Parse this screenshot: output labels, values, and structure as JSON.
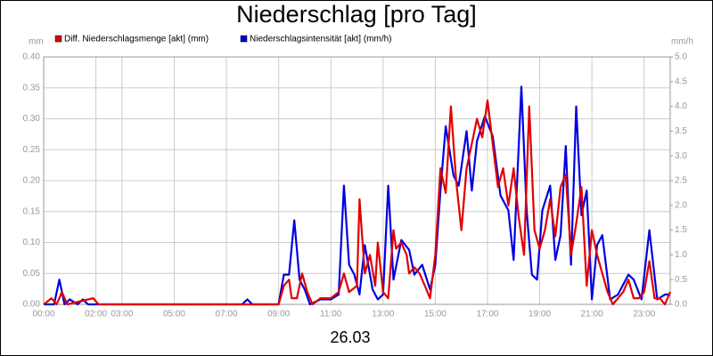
{
  "chart_data": {
    "type": "line",
    "title": "Niederschlag [pro Tag]",
    "x_label": "26.03",
    "y_label": "mm",
    "y2_label": "mm/h",
    "grid": true,
    "xlim": [
      0,
      24
    ],
    "xticks": [
      {
        "value": 0,
        "label": "00:00"
      },
      {
        "value": 2,
        "label": "02:00"
      },
      {
        "value": 3,
        "label": "03:00"
      },
      {
        "value": 5,
        "label": "05:00"
      },
      {
        "value": 7,
        "label": "07:00"
      },
      {
        "value": 9,
        "label": "09:00"
      },
      {
        "value": 11,
        "label": "11:00"
      },
      {
        "value": 13,
        "label": "13:00"
      },
      {
        "value": 15,
        "label": "15:00"
      },
      {
        "value": 17,
        "label": "17:00"
      },
      {
        "value": 19,
        "label": "19:00"
      },
      {
        "value": 21,
        "label": "21:00"
      },
      {
        "value": 23,
        "label": "23:00"
      }
    ],
    "ylim": [
      0,
      0.4
    ],
    "yticks": [
      {
        "value": 0,
        "label": "0.00"
      },
      {
        "value": 0.05,
        "label": "0.05"
      },
      {
        "value": 0.1,
        "label": "0.10"
      },
      {
        "value": 0.15,
        "label": "0.15"
      },
      {
        "value": 0.2,
        "label": "0.20"
      },
      {
        "value": 0.25,
        "label": "0.25"
      },
      {
        "value": 0.3,
        "label": "0.30"
      },
      {
        "value": 0.35,
        "label": "0.35"
      },
      {
        "value": 0.4,
        "label": "0.40"
      }
    ],
    "y2lim": [
      0,
      5
    ],
    "y2ticks": [
      {
        "value": 0,
        "label": "0.0"
      },
      {
        "value": 0.5,
        "label": "0.5"
      },
      {
        "value": 1,
        "label": "1.0"
      },
      {
        "value": 1.5,
        "label": "1.5"
      },
      {
        "value": 2,
        "label": "2.0"
      },
      {
        "value": 2.5,
        "label": "2.5"
      },
      {
        "value": 3,
        "label": "3.0"
      },
      {
        "value": 3.5,
        "label": "3.5"
      },
      {
        "value": 4,
        "label": "4.0"
      },
      {
        "value": 4.5,
        "label": "4.5"
      },
      {
        "value": 5,
        "label": "5.0"
      }
    ],
    "series": [
      {
        "name": "Niederschlagsintensität [akt] (mm/h)",
        "color": "#0000e0",
        "axis": "y2",
        "x": [
          0,
          0.4,
          0.6,
          0.8,
          1.0,
          1.3,
          1.5,
          1.7,
          2.0,
          7.6,
          7.8,
          8.0,
          9.0,
          9.2,
          9.4,
          9.6,
          9.8,
          10.0,
          10.2,
          10.6,
          11.0,
          11.3,
          11.5,
          11.7,
          11.9,
          12.1,
          12.3,
          12.6,
          12.8,
          13.0,
          13.2,
          13.4,
          13.7,
          14.0,
          14.2,
          14.5,
          14.8,
          15.0,
          15.2,
          15.4,
          15.7,
          15.9,
          16.2,
          16.4,
          16.6,
          16.9,
          17.2,
          17.5,
          17.8,
          18.0,
          18.3,
          18.5,
          18.7,
          18.9,
          19.1,
          19.4,
          19.6,
          19.8,
          20.0,
          20.2,
          20.4,
          20.6,
          20.8,
          21.0,
          21.2,
          21.4,
          21.7,
          22.0,
          22.4,
          22.6,
          22.9,
          23.2,
          23.5,
          23.8,
          24.0
        ],
        "values": [
          0,
          0,
          0.5,
          0,
          0.1,
          0,
          0.1,
          0,
          0,
          0,
          0.1,
          0,
          0,
          0.6,
          0.6,
          1.7,
          0.5,
          0.3,
          0,
          0.1,
          0.1,
          0.2,
          2.4,
          0.8,
          0.6,
          0.2,
          1.2,
          0.3,
          0.1,
          0.2,
          2.4,
          0.5,
          1.3,
          1.1,
          0.6,
          0.8,
          0.3,
          0.8,
          2.3,
          3.6,
          2.6,
          2.4,
          3.5,
          2.3,
          3.3,
          3.8,
          3.4,
          2.2,
          1.9,
          0.9,
          4.4,
          1.9,
          0.6,
          0.5,
          1.9,
          2.4,
          0.9,
          1.4,
          3.2,
          0.8,
          4.0,
          1.8,
          2.3,
          0.1,
          1.2,
          1.4,
          0.1,
          0.2,
          0.6,
          0.5,
          0.1,
          1.5,
          0.1,
          0.2,
          0.2
        ]
      },
      {
        "name": "Diff. Niederschlagsmenge [akt] (mm)",
        "color": "#e00000",
        "x": [
          0,
          0.3,
          0.5,
          0.7,
          0.9,
          1.9,
          2.1,
          9.0,
          9.2,
          9.4,
          9.5,
          9.7,
          9.9,
          10.1,
          10.3,
          10.6,
          11.0,
          11.3,
          11.5,
          11.7,
          12.0,
          12.1,
          12.3,
          12.5,
          12.7,
          12.8,
          13.0,
          13.2,
          13.4,
          13.5,
          13.7,
          13.9,
          14.0,
          14.2,
          14.4,
          14.6,
          14.8,
          15.0,
          15.2,
          15.4,
          15.6,
          15.8,
          16.0,
          16.2,
          16.4,
          16.6,
          16.8,
          17.0,
          17.2,
          17.4,
          17.6,
          17.8,
          18.0,
          18.2,
          18.4,
          18.6,
          18.8,
          19.0,
          19.2,
          19.4,
          19.6,
          19.8,
          20.0,
          20.2,
          20.4,
          20.6,
          20.8,
          21.0,
          21.2,
          21.4,
          21.6,
          21.8,
          22.0,
          22.2,
          22.4,
          22.6,
          22.8,
          23.0,
          23.2,
          23.4,
          23.6,
          23.8,
          24.0
        ],
        "values": [
          0,
          0.01,
          0,
          0.02,
          0,
          0.01,
          0,
          0,
          0.03,
          0.04,
          0.01,
          0.01,
          0.05,
          0.02,
          0,
          0.01,
          0.01,
          0.02,
          0.05,
          0.02,
          0.03,
          0.17,
          0.05,
          0.08,
          0.03,
          0.1,
          0.02,
          0.01,
          0.12,
          0.09,
          0.1,
          0.08,
          0.05,
          0.06,
          0.05,
          0.03,
          0.01,
          0.08,
          0.22,
          0.18,
          0.32,
          0.2,
          0.12,
          0.22,
          0.26,
          0.3,
          0.27,
          0.33,
          0.26,
          0.19,
          0.22,
          0.16,
          0.22,
          0.14,
          0.08,
          0.32,
          0.12,
          0.09,
          0.12,
          0.17,
          0.11,
          0.19,
          0.21,
          0.08,
          0.13,
          0.19,
          0.03,
          0.12,
          0.08,
          0.05,
          0.02,
          0,
          0.01,
          0.02,
          0.04,
          0.01,
          0.01,
          0.02,
          0.07,
          0.01,
          0.01,
          0,
          0.02
        ]
      }
    ]
  }
}
